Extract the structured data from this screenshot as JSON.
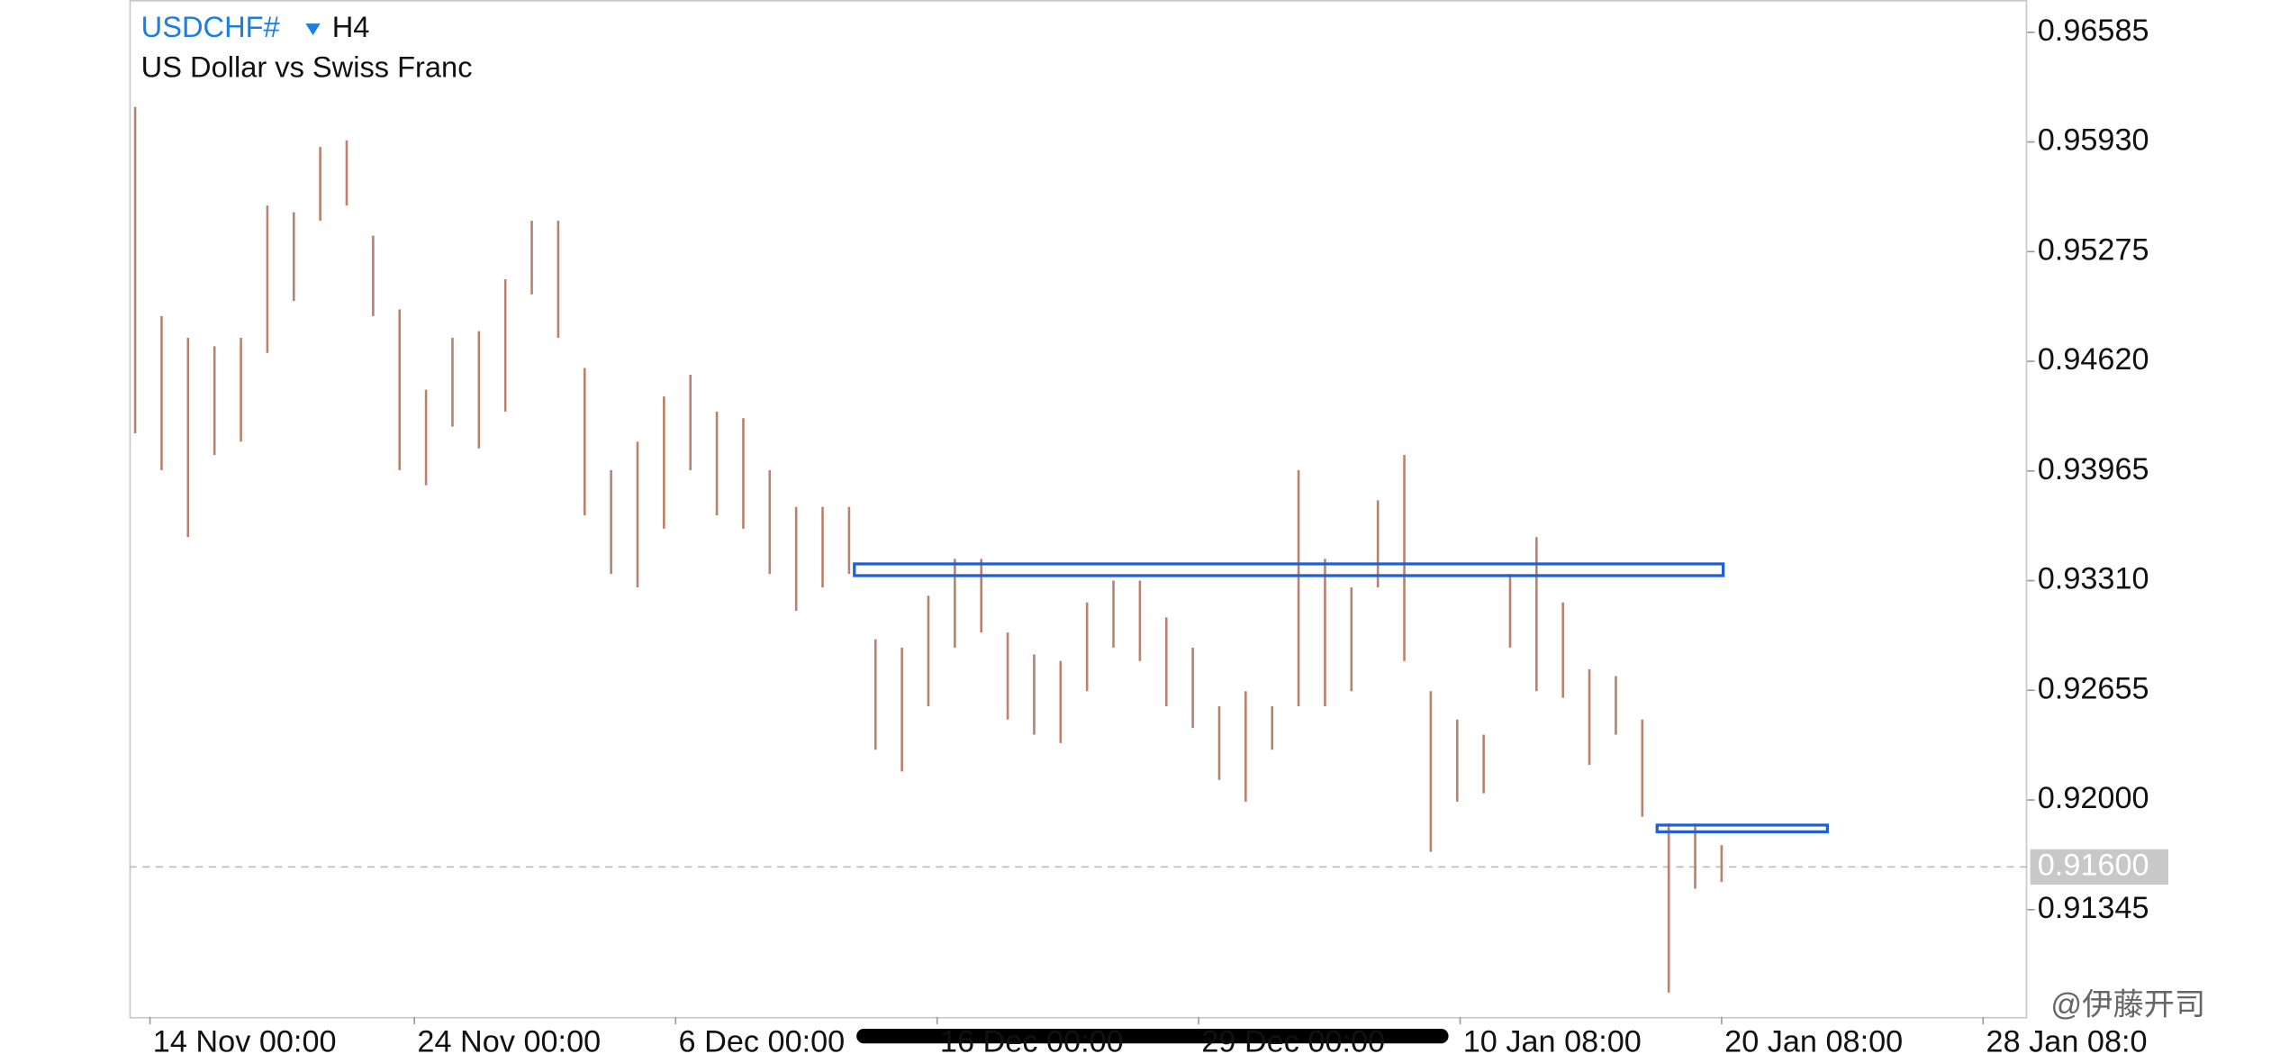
{
  "chart_data": {
    "type": "range",
    "symbol": "USDCHF#",
    "timeframe": "H4",
    "title": "US Dollar vs Swiss Franc",
    "xlim": [
      -0.22,
      71.56
    ],
    "xticks": [
      {
        "value": 0.56,
        "label": "14 Nov 00:00"
      },
      {
        "value": 10.56,
        "label": "24 Nov 00:00"
      },
      {
        "value": 20.44,
        "label": "6 Dec 00:00"
      },
      {
        "value": 30.33,
        "label": "16 Dec 00:00"
      },
      {
        "value": 40.22,
        "label": "29 Dec 00:00"
      },
      {
        "value": 50.11,
        "label": "10 Jan 08:00"
      },
      {
        "value": 60,
        "label": "20 Jan 08:00"
      },
      {
        "value": 69.89,
        "label": "28 Jan 08:0"
      }
    ],
    "ylim": [
      0.90704,
      0.96778
    ],
    "yticks": [
      0.96585,
      {
        "value": 0.9593,
        "label": "0.95930"
      },
      0.95275,
      {
        "value": 0.9462,
        "label": "0.94620"
      },
      0.93965,
      {
        "value": 0.9331,
        "label": "0.93310"
      },
      0.92655,
      {
        "value": 0.92,
        "label": "0.92000"
      },
      0.91345
    ],
    "current_price": {
      "value": 0.916,
      "label": "0.91600"
    },
    "color": "#b8826c",
    "series": [
      {
        "name": "high",
        "values": [
          0.9614,
          0.9489,
          0.9476,
          0.9471,
          0.9476,
          0.9555,
          0.9551,
          0.959,
          0.9594,
          0.9537,
          0.9493,
          0.9445,
          0.9476,
          0.948,
          0.9511,
          0.9546,
          0.9546,
          0.9458,
          0.9397,
          0.9414,
          0.9441,
          0.9454,
          0.9432,
          0.9428,
          0.9397,
          0.9375,
          0.9375,
          0.9375,
          0.9296,
          0.9291,
          0.9322,
          0.9344,
          0.9344,
          0.93,
          0.9287,
          0.9283,
          0.9318,
          0.9331,
          0.9331,
          0.9309,
          0.9291,
          0.9256,
          0.9265,
          0.9256,
          0.9397,
          0.9344,
          0.9327,
          0.9379,
          0.9406,
          0.9265,
          0.9248,
          0.9239,
          0.9335,
          0.9357,
          0.9318,
          0.9278,
          0.9274,
          0.9248,
          0.9186,
          0.9186,
          0.9173
        ]
      },
      {
        "name": "low",
        "values": [
          0.9419,
          0.9397,
          0.9357,
          0.9406,
          0.9414,
          0.9467,
          0.9498,
          0.9546,
          0.9555,
          0.9489,
          0.9397,
          0.9388,
          0.9423,
          0.941,
          0.9432,
          0.9502,
          0.9476,
          0.937,
          0.9335,
          0.9327,
          0.9362,
          0.9397,
          0.937,
          0.9362,
          0.9335,
          0.9313,
          0.9327,
          0.9335,
          0.923,
          0.9217,
          0.9256,
          0.9291,
          0.93,
          0.9248,
          0.9239,
          0.9234,
          0.9265,
          0.9291,
          0.9283,
          0.9256,
          0.9243,
          0.9212,
          0.9199,
          0.923,
          0.9256,
          0.9256,
          0.9265,
          0.9327,
          0.9283,
          0.9169,
          0.9199,
          0.9204,
          0.9291,
          0.9265,
          0.9261,
          0.9221,
          0.9239,
          0.919,
          0.9085,
          0.9147,
          0.9151
        ]
      }
    ],
    "zones": [
      {
        "x": [
          27.2,
          60.06
        ],
        "y": [
          0.9334,
          0.9341
        ]
      },
      {
        "x": [
          57.56,
          64
        ],
        "y": [
          0.9181,
          0.9185
        ]
      }
    ],
    "watermark": "@伊藤开司"
  }
}
